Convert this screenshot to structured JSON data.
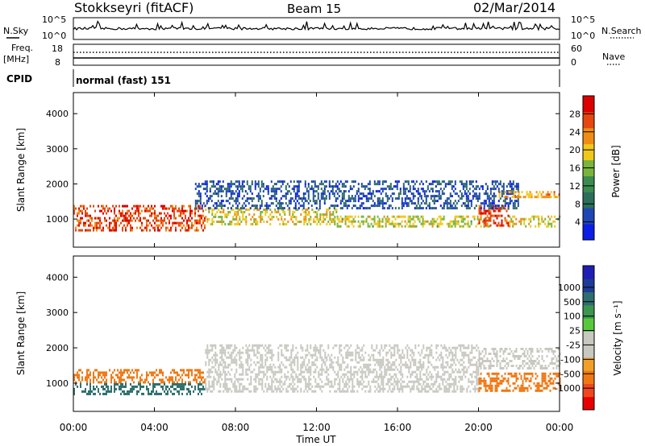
{
  "header": {
    "station": "Stokkseyri (fitACF)",
    "beam": "Beam 15",
    "date": "02/Mar/2014"
  },
  "noise_panel": {
    "left_label": "N.Sky",
    "left_ticks": [
      "10^5",
      "10^0"
    ],
    "right_label": "N.Search",
    "right_ticks": [
      "10^5",
      "10^0"
    ]
  },
  "freq_panel": {
    "label_top": "Freq.",
    "label_bottom": "[MHz]",
    "left_ticks": [
      "18",
      "8"
    ],
    "right_label": "Nave",
    "right_ticks": [
      "60",
      "0"
    ]
  },
  "cpid_panel": {
    "label": "CPID",
    "mode_text": "normal (fast) 151"
  },
  "colors": {
    "power": [
      "#0a1ee6",
      "#1e46b4",
      "#2d6e5a",
      "#3c8c50",
      "#7ab43c",
      "#f0c819",
      "#f08c14",
      "#e6460f",
      "#dc0000"
    ],
    "velocity": [
      "#e60000",
      "#f0461e",
      "#f07814",
      "#f0a028",
      "#c8c8c0",
      "#c8c8c0",
      "#5ac83c",
      "#3c9650",
      "#2d6e6e",
      "#1e3c96",
      "#1e1eb4"
    ]
  },
  "chart_data": [
    {
      "type": "heatmap",
      "panel": "power",
      "ylabel": "Slant Range [km]",
      "ylim": [
        200,
        4600
      ],
      "yticks": [
        "1000",
        "2000",
        "3000",
        "4000"
      ],
      "colorbar": {
        "label": "Power [dB]",
        "range": [
          0,
          32
        ],
        "ticks": [
          "4",
          "8",
          "12",
          "16",
          "20",
          "24",
          "28"
        ]
      },
      "x": [
        "00:00",
        "04:00",
        "08:00",
        "12:00",
        "16:00",
        "20:00",
        "00:00"
      ],
      "bands": [
        {
          "start_h": 0.0,
          "end_h": 6.5,
          "range_lo_km": 700,
          "range_hi_km": 1400,
          "power_db": 27
        },
        {
          "start_h": 6.5,
          "end_h": 13.0,
          "range_lo_km": 850,
          "range_hi_km": 1300,
          "power_db": 19
        },
        {
          "start_h": 13.0,
          "end_h": 20.5,
          "range_lo_km": 800,
          "range_hi_km": 1100,
          "power_db": 18
        },
        {
          "start_h": 20.0,
          "end_h": 21.5,
          "range_lo_km": 800,
          "range_hi_km": 1400,
          "power_db": 27
        },
        {
          "start_h": 21.5,
          "end_h": 24.0,
          "range_lo_km": 800,
          "range_hi_km": 1100,
          "power_db": 19
        },
        {
          "start_h": 6.0,
          "end_h": 22.0,
          "range_lo_km": 1300,
          "range_hi_km": 2100,
          "power_db": 6
        },
        {
          "start_h": 21.0,
          "end_h": 24.0,
          "range_lo_km": 1600,
          "range_hi_km": 1800,
          "power_db": 22
        }
      ]
    },
    {
      "type": "heatmap",
      "panel": "velocity",
      "xlabel": "Time UT",
      "ylabel": "Slant Range [km]",
      "ylim": [
        200,
        4600
      ],
      "yticks": [
        "1000",
        "2000",
        "3000",
        "4000"
      ],
      "colorbar": {
        "label": "Velocity [m s⁻¹]",
        "ticks": [
          "1000",
          "500",
          "100",
          "25",
          "-25",
          "-100",
          "-500",
          "-1000"
        ]
      },
      "x": [
        "00:00",
        "04:00",
        "08:00",
        "12:00",
        "16:00",
        "20:00",
        "00:00"
      ],
      "bands": [
        {
          "start_h": 0.0,
          "end_h": 6.5,
          "range_lo_km": 1000,
          "range_hi_km": 1400,
          "velocity_ms": -200
        },
        {
          "start_h": 0.0,
          "end_h": 6.5,
          "range_lo_km": 700,
          "range_hi_km": 1000,
          "velocity_ms": 150
        },
        {
          "start_h": 6.5,
          "end_h": 20.0,
          "range_lo_km": 800,
          "range_hi_km": 2100,
          "velocity_ms": 0
        },
        {
          "start_h": 20.0,
          "end_h": 24.0,
          "range_lo_km": 800,
          "range_hi_km": 1300,
          "velocity_ms": -300
        },
        {
          "start_h": 20.0,
          "end_h": 24.0,
          "range_lo_km": 1400,
          "range_hi_km": 2000,
          "velocity_ms": 0
        }
      ]
    }
  ]
}
